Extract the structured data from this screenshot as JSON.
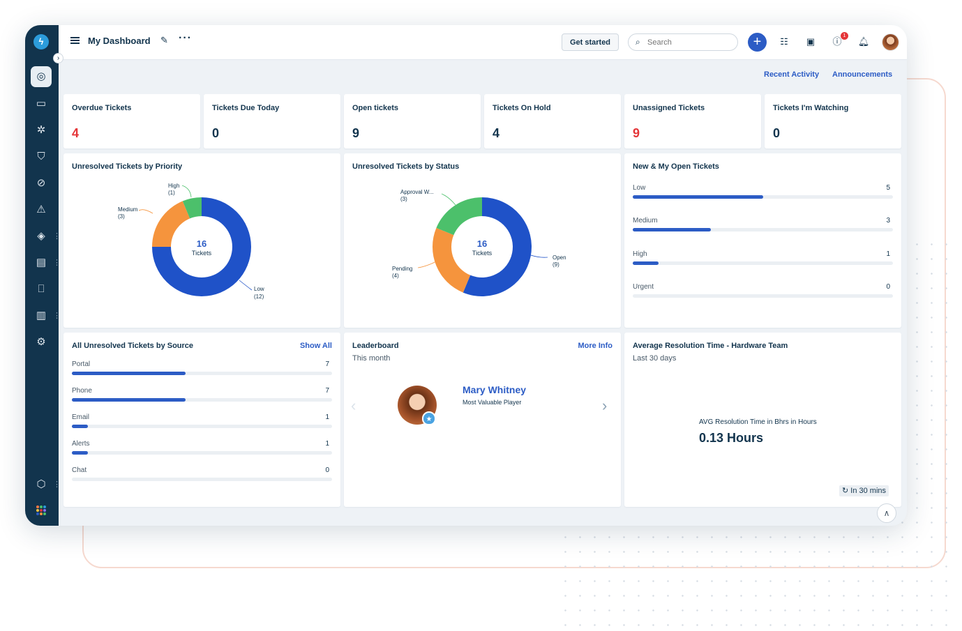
{
  "header": {
    "title": "My Dashboard",
    "get_started_label": "Get started",
    "search_placeholder": "Search",
    "notification_count": "1"
  },
  "top_links": {
    "recent_activity": "Recent Activity",
    "announcements": "Announcements"
  },
  "stats": [
    {
      "label": "Overdue Tickets",
      "value": "4",
      "color": "#e43538"
    },
    {
      "label": "Tickets Due Today",
      "value": "0",
      "color": "#12344d"
    },
    {
      "label": "Open tickets",
      "value": "9",
      "color": "#12344d"
    },
    {
      "label": "Tickets On Hold",
      "value": "4",
      "color": "#12344d"
    },
    {
      "label": "Unassigned Tickets",
      "value": "9",
      "color": "#e43538"
    },
    {
      "label": "Tickets I'm Watching",
      "value": "0",
      "color": "#12344d"
    }
  ],
  "priority_chart": {
    "title": "Unresolved Tickets by Priority",
    "center_value": "16",
    "center_label": "Tickets",
    "slices": [
      {
        "name": "Low",
        "count": "(12)",
        "value": 12,
        "color": "#1f52c8"
      },
      {
        "name": "Medium",
        "count": "(3)",
        "value": 3,
        "color": "#f5943d"
      },
      {
        "name": "High",
        "count": "(1)",
        "value": 1,
        "color": "#4cc06b"
      }
    ]
  },
  "status_chart": {
    "title": "Unresolved Tickets by Status",
    "center_value": "16",
    "center_label": "Tickets",
    "slices": [
      {
        "name": "Open",
        "count": "(9)",
        "value": 9,
        "color": "#1f52c8"
      },
      {
        "name": "Pending",
        "count": "(4)",
        "value": 4,
        "color": "#f5943d"
      },
      {
        "name": "Approval W...",
        "count": "(3)",
        "value": 3,
        "color": "#4cc06b"
      }
    ]
  },
  "my_open": {
    "title": "New & My Open Tickets",
    "max": 10,
    "rows": [
      {
        "label": "Low",
        "count": "5",
        "value": 5
      },
      {
        "label": "Medium",
        "count": "3",
        "value": 3
      },
      {
        "label": "High",
        "count": "1",
        "value": 1
      },
      {
        "label": "Urgent",
        "count": "0",
        "value": 0
      }
    ]
  },
  "source": {
    "title": "All Unresolved Tickets by Source",
    "link": "Show All",
    "max": 16,
    "rows": [
      {
        "label": "Portal",
        "count": "7",
        "value": 7
      },
      {
        "label": "Phone",
        "count": "7",
        "value": 7
      },
      {
        "label": "Email",
        "count": "1",
        "value": 1
      },
      {
        "label": "Alerts",
        "count": "1",
        "value": 1
      },
      {
        "label": "Chat",
        "count": "0",
        "value": 0
      }
    ]
  },
  "leaderboard": {
    "title": "Leaderboard",
    "subtitle": "This month",
    "link": "More Info",
    "name": "Mary Whitney",
    "role": "Most Valuable Player"
  },
  "avg_resolution": {
    "title": "Average Resolution Time - Hardware Team",
    "subtitle": "Last 30 days",
    "metric_label": "AVG Resolution Time in Bhrs in Hours",
    "metric_value": "0.13 Hours",
    "refresh_label": "In 30 mins"
  },
  "sidebar_icons": [
    "dashboard-icon",
    "tickets-icon",
    "problems-icon",
    "changes-icon",
    "releases-icon",
    "alerts-icon",
    "assets-icon",
    "contracts-icon",
    "solutions-icon",
    "reports-icon",
    "admin-icon",
    "bundle-icon",
    "apps-icon"
  ],
  "app_grid_colors": [
    "#ff7a45",
    "#4cc06b",
    "#2c9cdb",
    "#f5c542",
    "#e43538",
    "#8c6cf0",
    "#2c5cc5",
    "#f5943d",
    "#4cc06b"
  ]
}
